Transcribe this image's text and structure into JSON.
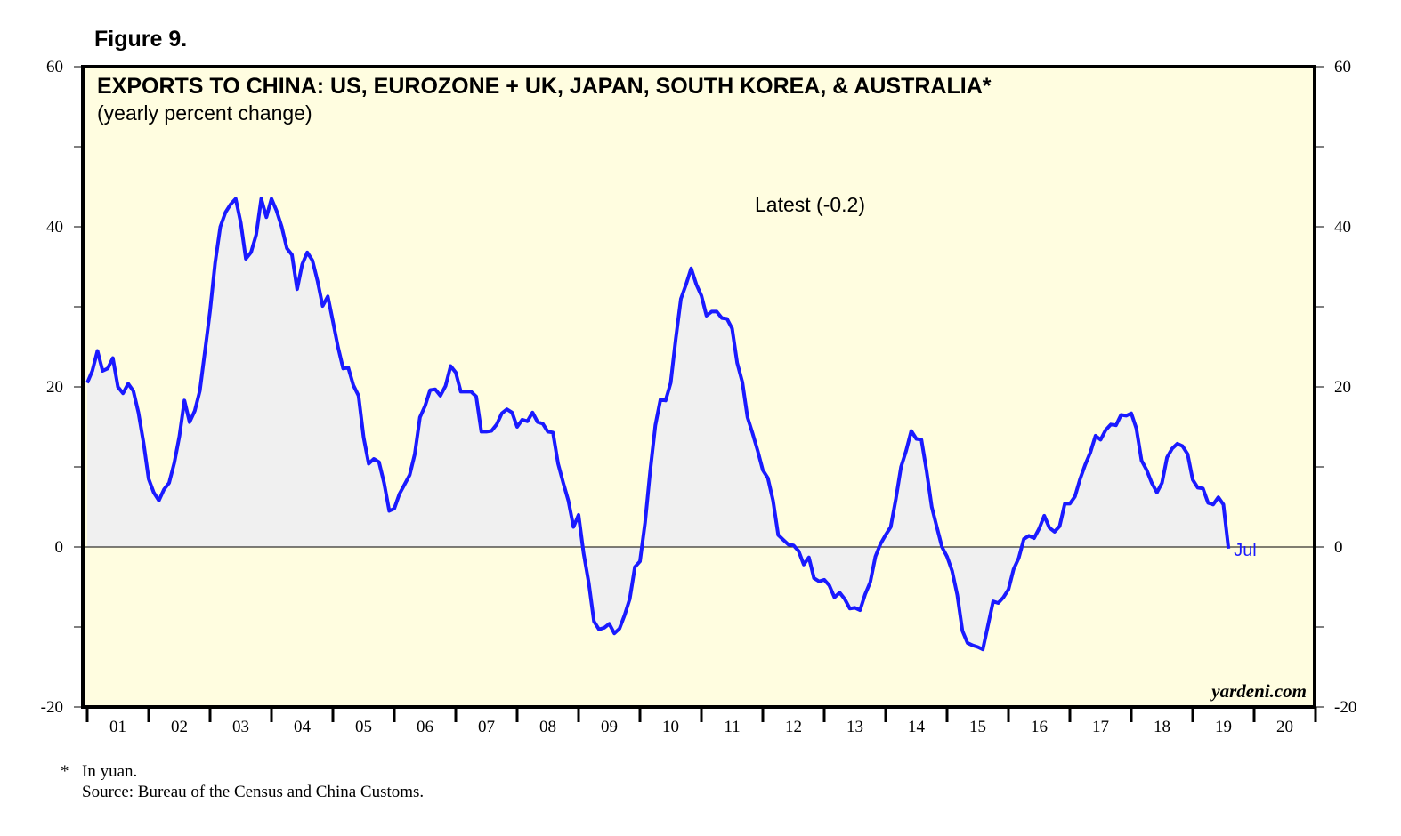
{
  "figure_label": "Figure 9.",
  "footnote": {
    "marker": "*",
    "note": "In yuan.",
    "source": "Source: Bureau of the Census and China Customs."
  },
  "colors": {
    "plot_background": "#fffde0",
    "area_fill": "#f0f0f0",
    "line": "#1a1aff",
    "axis": "#000000"
  },
  "chart_data": {
    "type": "area",
    "title": "EXPORTS TO CHINA: US, EUROZONE + UK, JAPAN, SOUTH KOREA, & AUSTRALIA*",
    "subtitle": "(yearly percent change)",
    "annotation": "Latest (-0.2)",
    "end_label": "Jul",
    "watermark": "yardeni.com",
    "ylim": [
      -20,
      60
    ],
    "yticks": [
      -20,
      0,
      20,
      40,
      60
    ],
    "xlim": [
      2000.0,
      2020.0
    ],
    "xtick_labels": [
      "01",
      "02",
      "03",
      "04",
      "05",
      "06",
      "07",
      "08",
      "09",
      "10",
      "11",
      "12",
      "13",
      "14",
      "15",
      "16",
      "17",
      "18",
      "19",
      "20"
    ],
    "series": [
      {
        "name": "Exports to China (yearly percent change)",
        "start": "2000-01",
        "frequency": "monthly",
        "values": [
          20.5,
          22.0,
          24.5,
          22.0,
          22.3,
          23.6,
          20.0,
          19.2,
          20.4,
          19.5,
          16.8,
          13.0,
          8.5,
          6.8,
          5.8,
          7.2,
          8.0,
          10.5,
          13.8,
          18.3,
          15.6,
          17.0,
          19.5,
          24.5,
          29.5,
          35.5,
          40.0,
          41.8,
          42.8,
          43.5,
          40.5,
          36.0,
          36.8,
          39.0,
          43.5,
          41.2,
          43.5,
          42.0,
          40.0,
          37.3,
          36.5,
          32.2,
          35.3,
          36.8,
          35.8,
          33.2,
          30.1,
          31.3,
          28.2,
          25.0,
          22.3,
          22.4,
          20.2,
          18.9,
          13.7,
          10.4,
          11.0,
          10.6,
          8.0,
          4.5,
          4.8,
          6.6,
          7.8,
          9.0,
          11.6,
          16.2,
          17.6,
          19.6,
          19.7,
          18.9,
          20.1,
          22.6,
          21.8,
          19.4,
          19.4,
          19.4,
          18.8,
          14.4,
          14.4,
          14.5,
          15.3,
          16.7,
          17.2,
          16.8,
          15.0,
          15.9,
          15.7,
          16.8,
          15.6,
          15.4,
          14.4,
          14.3,
          10.4,
          8.0,
          5.8,
          2.5,
          4.0,
          -0.8,
          -4.5,
          -9.3,
          -10.3,
          -10.1,
          -9.6,
          -10.8,
          -10.2,
          -8.5,
          -6.5,
          -2.5,
          -1.8,
          3.0,
          9.5,
          15.2,
          18.4,
          18.3,
          20.5,
          26.0,
          31.0,
          32.8,
          34.8,
          32.8,
          31.4,
          28.9,
          29.4,
          29.4,
          28.6,
          28.5,
          27.3,
          23.0,
          20.6,
          16.2,
          14.2,
          12.0,
          9.6,
          8.6,
          5.8,
          1.5,
          0.9,
          0.3,
          0.2,
          -0.5,
          -2.2,
          -1.3,
          -3.9,
          -4.3,
          -4.1,
          -4.8,
          -6.3,
          -5.7,
          -6.5,
          -7.7,
          -7.6,
          -7.9,
          -5.9,
          -4.4,
          -1.2,
          0.4,
          1.5,
          2.5,
          6.0,
          10.0,
          12.0,
          14.5,
          13.5,
          13.4,
          9.5,
          5.0,
          2.5,
          0.0,
          -1.2,
          -3.0,
          -6.0,
          -10.5,
          -12.0,
          -12.3,
          -12.5,
          -12.8,
          -9.8,
          -6.8,
          -7.0,
          -6.3,
          -5.3,
          -2.8,
          -1.4,
          1.0,
          1.4,
          1.1,
          2.3,
          3.9,
          2.4,
          1.9,
          2.6,
          5.4,
          5.4,
          6.3,
          8.5,
          10.3,
          11.8,
          13.9,
          13.4,
          14.6,
          15.3,
          15.2,
          16.5,
          16.4,
          16.7,
          14.8,
          10.8,
          9.6,
          8.0,
          6.8,
          8.0,
          11.2,
          12.3,
          12.9,
          12.6,
          11.6,
          8.4,
          7.4,
          7.3,
          5.5,
          5.3,
          6.2,
          5.3,
          -0.2
        ]
      }
    ]
  }
}
